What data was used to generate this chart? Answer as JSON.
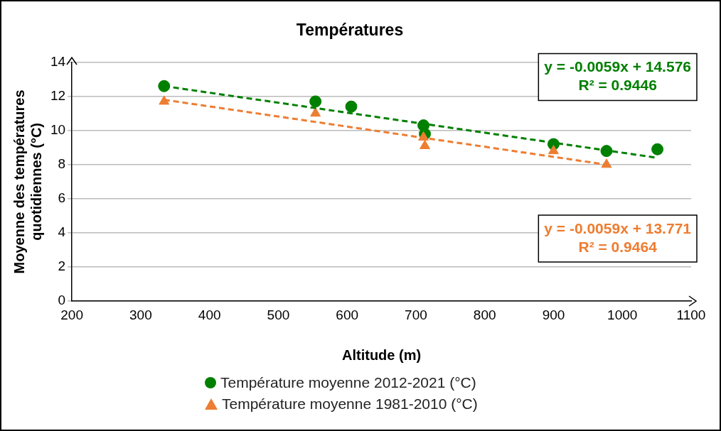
{
  "chart_data": {
    "type": "scatter",
    "title": "Températures",
    "xlabel": "Altitude (m)",
    "ylabel": "Moyenne des températures quotidiennes (°C)",
    "xlim": [
      200,
      1100
    ],
    "xticks": [
      200,
      300,
      400,
      500,
      600,
      700,
      800,
      900,
      1000,
      1100
    ],
    "ylim": [
      0,
      14
    ],
    "yticks": [
      0,
      2,
      4,
      6,
      8,
      10,
      12,
      14
    ],
    "grid": "y",
    "legend": "bottom",
    "series": [
      {
        "name": "Température moyenne 2012-2021 (°C)",
        "color": "#008000",
        "marker": "circle",
        "x": [
          334,
          554,
          606,
          711,
          713,
          900,
          977,
          1051
        ],
        "values": [
          12.6,
          11.7,
          11.4,
          10.3,
          9.8,
          9.2,
          8.8,
          8.9
        ]
      },
      {
        "name": "Température moyenne 1981-2010 (°C)",
        "color": "#ed7d31",
        "marker": "triangle",
        "x": [
          334,
          554,
          711,
          713,
          900,
          977
        ],
        "values": [
          11.7,
          11.0,
          9.6,
          9.1,
          8.8,
          8.0
        ]
      },
      {
        "type": "line",
        "color": "#008000",
        "line_style": "dashed",
        "marker": "none",
        "x": [
          334,
          1051
        ],
        "values": [
          12.6,
          8.4
        ]
      },
      {
        "type": "line",
        "color": "#ed7d31",
        "line_style": "dashed",
        "marker": "none",
        "x": [
          334,
          977
        ],
        "values": [
          11.8,
          8.0
        ]
      }
    ],
    "annotations": [
      "y = -0.0059x + 14.576\nR² = 0.9446",
      "y = -0.0059x + 13.771\nR² = 0.9464"
    ]
  }
}
